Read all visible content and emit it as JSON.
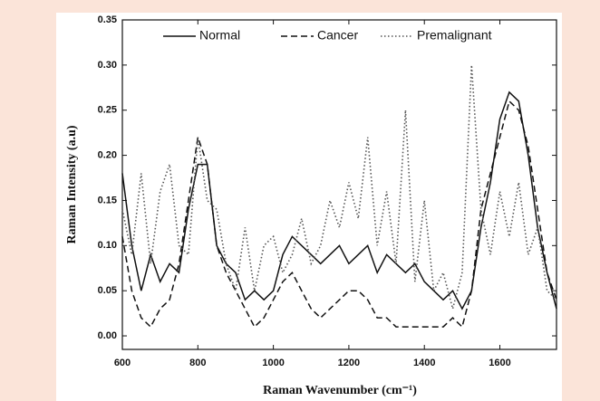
{
  "chart_data": {
    "type": "line",
    "x_label": "Raman Wavenumber (cm⁻¹)",
    "y_label": "Raman Intensity (a.u)",
    "x": [
      600,
      625,
      650,
      675,
      700,
      725,
      750,
      775,
      800,
      825,
      850,
      875,
      900,
      925,
      950,
      975,
      1000,
      1025,
      1050,
      1075,
      1100,
      1125,
      1150,
      1175,
      1200,
      1225,
      1250,
      1275,
      1300,
      1325,
      1350,
      1375,
      1400,
      1425,
      1450,
      1475,
      1500,
      1525,
      1550,
      1575,
      1600,
      1625,
      1650,
      1675,
      1700,
      1725,
      1750
    ],
    "series": [
      {
        "name": "Normal",
        "color": "#111111",
        "dash": "solid",
        "values": [
          0.18,
          0.1,
          0.05,
          0.09,
          0.06,
          0.08,
          0.07,
          0.14,
          0.19,
          0.19,
          0.1,
          0.08,
          0.07,
          0.04,
          0.05,
          0.04,
          0.05,
          0.09,
          0.11,
          0.1,
          0.09,
          0.08,
          0.09,
          0.1,
          0.08,
          0.09,
          0.1,
          0.07,
          0.09,
          0.08,
          0.07,
          0.08,
          0.06,
          0.05,
          0.04,
          0.05,
          0.03,
          0.05,
          0.12,
          0.17,
          0.24,
          0.27,
          0.26,
          0.2,
          0.12,
          0.07,
          0.03
        ]
      },
      {
        "name": "Cancer",
        "color": "#111111",
        "dash": "dashed",
        "values": [
          0.11,
          0.05,
          0.02,
          0.01,
          0.03,
          0.04,
          0.08,
          0.15,
          0.22,
          0.19,
          0.1,
          0.07,
          0.05,
          0.03,
          0.01,
          0.02,
          0.04,
          0.06,
          0.07,
          0.05,
          0.03,
          0.02,
          0.03,
          0.04,
          0.05,
          0.05,
          0.04,
          0.02,
          0.02,
          0.01,
          0.01,
          0.01,
          0.01,
          0.01,
          0.01,
          0.02,
          0.01,
          0.05,
          0.14,
          0.18,
          0.22,
          0.26,
          0.25,
          0.21,
          0.14,
          0.07,
          0.04
        ]
      },
      {
        "name": "Premalignant",
        "color": "#555555",
        "dash": "dotted",
        "values": [
          0.14,
          0.09,
          0.18,
          0.08,
          0.16,
          0.19,
          0.1,
          0.09,
          0.22,
          0.15,
          0.14,
          0.08,
          0.05,
          0.12,
          0.05,
          0.1,
          0.11,
          0.07,
          0.09,
          0.13,
          0.08,
          0.1,
          0.15,
          0.12,
          0.17,
          0.13,
          0.22,
          0.1,
          0.16,
          0.08,
          0.25,
          0.06,
          0.15,
          0.05,
          0.07,
          0.03,
          0.07,
          0.3,
          0.14,
          0.09,
          0.16,
          0.11,
          0.17,
          0.09,
          0.12,
          0.05,
          0.04
        ]
      }
    ],
    "xlim": [
      600,
      1750
    ],
    "xticks": [
      600,
      800,
      1000,
      1200,
      1400,
      1600
    ],
    "ylim": [
      -0.015,
      0.35
    ],
    "yticks": [
      {
        "value": 0,
        "label": "0.00"
      },
      {
        "value": 0.05,
        "label": "0.05"
      },
      {
        "value": 0.1,
        "label": "0.10"
      },
      {
        "value": 0.15,
        "label": "0.15"
      },
      {
        "value": 0.2,
        "label": "0.20"
      },
      {
        "value": 0.25,
        "label": "0.25"
      },
      {
        "value": 0.3,
        "label": "0.30"
      },
      {
        "value": 0.35,
        "label": "0.35"
      }
    ],
    "legend_position": "top",
    "grid": false
  }
}
